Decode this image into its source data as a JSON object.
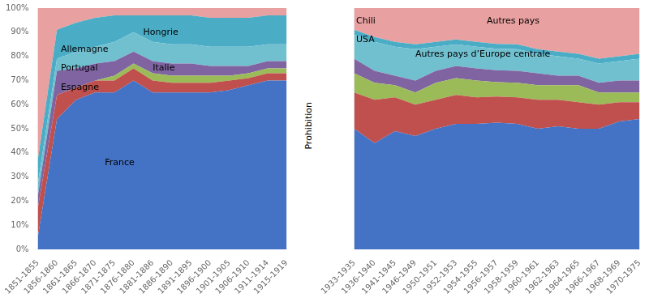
{
  "chart_data": [
    {
      "type": "area",
      "stacked": true,
      "grid": true,
      "categories": [
        "1851-1855",
        "1856-1860",
        "1861-1865",
        "1866-1870",
        "1871-1875",
        "1876-1880",
        "1881-1886",
        "1886-1890",
        "1891-1895",
        "1896-1900",
        "1901-1905",
        "1906-1910",
        "1911-1914",
        "1915-1919"
      ],
      "series": [
        {
          "color": "#4472C4",
          "values": [
            5,
            54,
            62,
            65,
            65,
            70,
            65,
            65,
            65,
            65,
            66,
            68,
            70,
            70
          ]
        },
        {
          "color": "#C0504D",
          "values": [
            12,
            10,
            5,
            5,
            5,
            5,
            5,
            4,
            4,
            4,
            4,
            3,
            3,
            3
          ]
        },
        {
          "color": "#9BBB59",
          "values": [
            0,
            0,
            0,
            0,
            2,
            2,
            3,
            3,
            3,
            3,
            2,
            2,
            2,
            2
          ]
        },
        {
          "color": "#8064A2",
          "values": [
            5,
            10,
            8,
            7,
            6,
            5,
            5,
            5,
            5,
            4,
            4,
            3,
            3,
            3
          ]
        },
        {
          "color": "#70C0D0",
          "values": [
            5,
            5,
            7,
            7,
            8,
            8,
            8,
            8,
            8,
            8,
            8,
            8,
            7,
            7
          ]
        },
        {
          "color": "#4BACC6",
          "values": [
            10,
            12,
            12,
            12,
            11,
            7,
            11,
            12,
            12,
            12,
            12,
            12,
            12,
            12
          ]
        },
        {
          "color": "#E8A0A0",
          "values": [
            63,
            9,
            6,
            4,
            3,
            3,
            3,
            3,
            3,
            4,
            4,
            4,
            3,
            3
          ]
        }
      ],
      "ylim": [
        0,
        100
      ],
      "yticks": [
        {
          "value": 0,
          "label": "0%"
        },
        {
          "value": 10,
          "label": "10%"
        },
        {
          "value": 20,
          "label": "20%"
        },
        {
          "value": 30,
          "label": "30%"
        },
        {
          "value": 40,
          "label": "40%"
        },
        {
          "value": 50,
          "label": "50%"
        },
        {
          "value": 60,
          "label": "60%"
        },
        {
          "value": 70,
          "label": "70%"
        },
        {
          "value": 80,
          "label": "80%"
        },
        {
          "value": 90,
          "label": "90%"
        },
        {
          "value": 100,
          "label": "100%"
        }
      ],
      "annotations": [
        "France",
        "Espagne",
        "Portugal",
        "Allemagne",
        "Hongrie",
        "Italie"
      ]
    },
    {
      "type": "area",
      "stacked": true,
      "grid": true,
      "tick_labels": "x",
      "categories": [
        "1933-1935",
        "1936-1940",
        "1941-1945",
        "1946-1949",
        "1950-1951",
        "1952-1953",
        "1954-1955",
        "1956-1957",
        "1958-1959",
        "1960-1961",
        "1962-1963",
        "1964-1965",
        "1966-1967",
        "1968-1969",
        "1970-1975"
      ],
      "series": [
        {
          "color": "#4472C4",
          "values": [
            50,
            44,
            49,
            47,
            50,
            52,
            52,
            52.475247524752476,
            52,
            50,
            51,
            50,
            50,
            53,
            54
          ]
        },
        {
          "color": "#C0504D",
          "values": [
            15,
            18,
            14,
            13,
            12,
            12,
            11,
            10.891089108910892,
            11,
            12,
            11,
            11,
            10,
            8,
            7
          ]
        },
        {
          "color": "#9BBB59",
          "values": [
            8,
            7,
            5,
            5,
            7,
            7,
            7,
            5.9405940594059405,
            6,
            6,
            6,
            7,
            5,
            4,
            4
          ]
        },
        {
          "color": "#8064A2",
          "values": [
            6,
            5,
            4,
            5,
            5,
            5,
            5,
            4.9504950495049505,
            5,
            5,
            4,
            4,
            4,
            5,
            5
          ]
        },
        {
          "color": "#70C0D0",
          "values": [
            10,
            12,
            12,
            13,
            10,
            9,
            9,
            8.910891089108912,
            9,
            8,
            8,
            7,
            8,
            8,
            9
          ]
        },
        {
          "color": "#4BACC6",
          "values": [
            2,
            2,
            2,
            2,
            2,
            2,
            2,
            1.9801980198019802,
            2,
            2,
            2,
            2,
            2,
            2,
            2
          ]
        },
        {
          "color": "#E8A0A0",
          "values": [
            9,
            12,
            14,
            15,
            14,
            13,
            14,
            14.851485148514852,
            15,
            17,
            18,
            19,
            21,
            20,
            19
          ]
        }
      ],
      "ylim": [
        0,
        100
      ],
      "yticks": [
        0,
        10,
        20,
        30,
        40,
        50,
        60,
        70,
        80,
        90,
        100
      ],
      "annotations": [
        "Chili",
        "Autres pays",
        "USA",
        "Autres pays d’Europe centrale",
        "Prohibition"
      ]
    }
  ]
}
